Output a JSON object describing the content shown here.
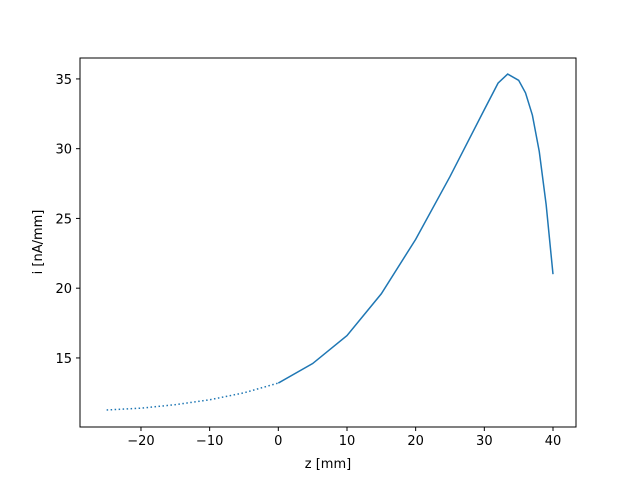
{
  "chart_data": {
    "type": "line",
    "x_label": "z [mm]",
    "y_label": "i [nA/mm]",
    "x": [
      -25,
      -20,
      -15,
      -10,
      -5,
      0,
      5,
      10,
      15,
      20,
      25,
      30,
      32,
      33.4,
      35,
      36,
      37,
      38,
      39,
      40
    ],
    "series": [
      {
        "color": "#1f77b4",
        "linestyle": "dotted",
        "values": [
          11.27,
          11.4,
          11.65,
          12.0,
          12.5,
          13.2,
          null,
          null,
          null,
          null,
          null,
          null,
          null,
          null,
          null,
          null,
          null,
          null,
          null,
          null
        ]
      },
      {
        "color": "#1f77b4",
        "linestyle": "solid",
        "values": [
          null,
          null,
          null,
          null,
          null,
          13.2,
          14.6,
          16.6,
          19.6,
          23.5,
          28.0,
          32.8,
          34.7,
          35.35,
          34.9,
          34.0,
          32.4,
          29.8,
          26.0,
          21.0
        ]
      }
    ],
    "xlim": [
      -28.88,
      43.35
    ],
    "xticks": [
      {
        "value": -20,
        "label": "−20"
      },
      {
        "value": -10,
        "label": "−10"
      },
      0,
      10,
      20,
      30,
      40
    ],
    "ylim": [
      10.05,
      36.5
    ],
    "yticks": [
      15,
      20,
      25,
      30,
      35
    ],
    "grid": false
  }
}
